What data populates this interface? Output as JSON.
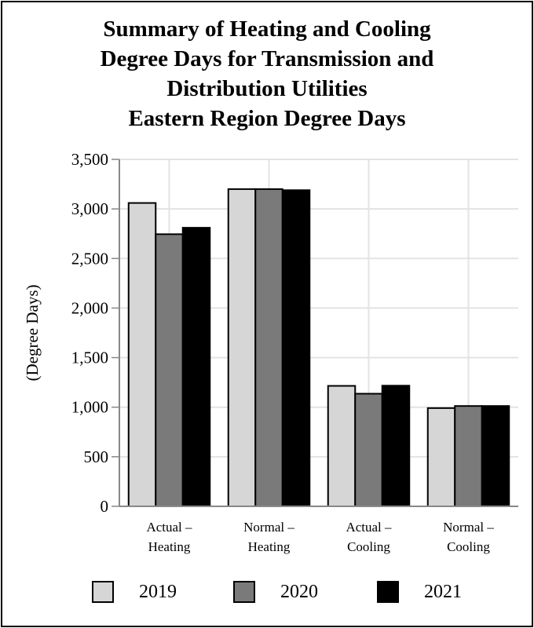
{
  "chart_data": {
    "type": "bar",
    "title_lines": [
      "Summary of Heating and Cooling",
      "Degree Days for Transmission and",
      "Distribution Utilities",
      "Eastern Region Degree Days"
    ],
    "ylabel": "(Degree Days)",
    "xlabel": "",
    "ylim": [
      0,
      3500
    ],
    "yticks": [
      0,
      500,
      1000,
      1500,
      2000,
      2500,
      3000,
      3500
    ],
    "ytick_labels": [
      "0",
      "500",
      "1,000",
      "1,500",
      "2,000",
      "2,500",
      "3,000",
      "3,500"
    ],
    "categories": [
      [
        "Actual –",
        "Heating"
      ],
      [
        "Normal –",
        "Heating"
      ],
      [
        "Actual –",
        "Cooling"
      ],
      [
        "Normal –",
        "Cooling"
      ]
    ],
    "series": [
      {
        "name": "2019",
        "color": "#d6d6d6",
        "values": [
          3060,
          3200,
          1215,
          991
        ]
      },
      {
        "name": "2020",
        "color": "#7a7a7a",
        "values": [
          2745,
          3200,
          1136,
          1012
        ]
      },
      {
        "name": "2021",
        "color": "#000000",
        "values": [
          2810,
          3189,
          1217,
          1012
        ]
      }
    ],
    "grid": true,
    "legend_position": "bottom"
  }
}
